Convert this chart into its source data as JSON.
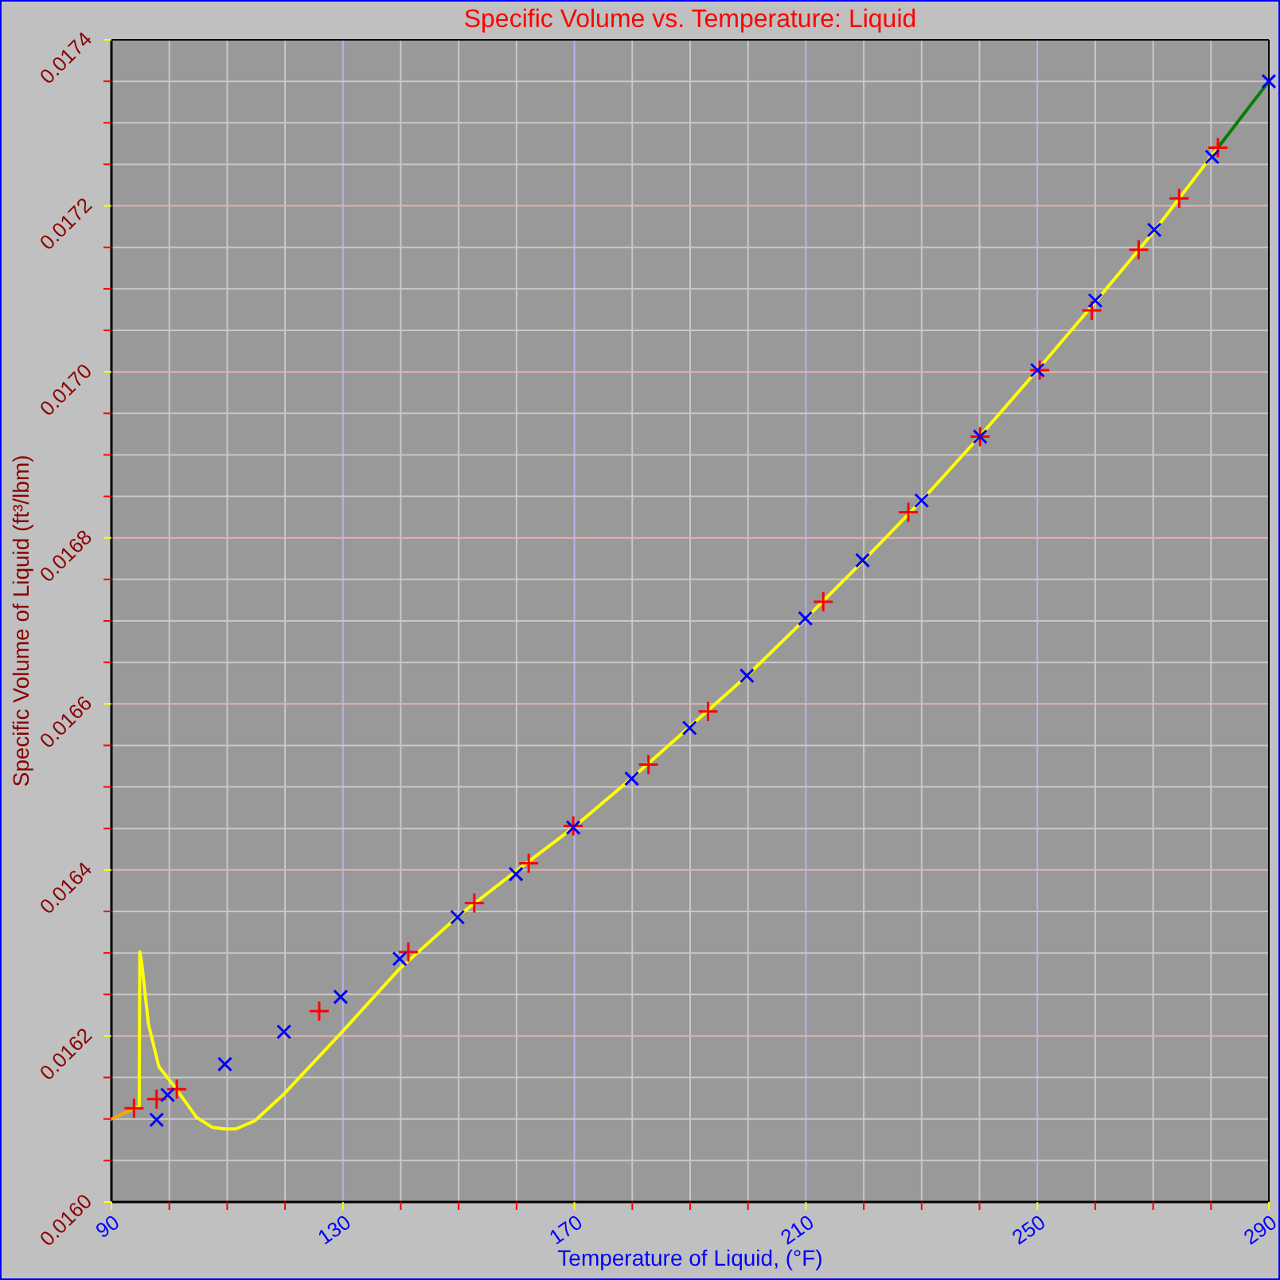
{
  "chart_data": {
    "type": "line",
    "title": "Specific Volume vs. Temperature: Liquid",
    "xlabel": "Temperature of Liquid, (°F)",
    "ylabel": "Specific Volume of Liquid (ft³/lbm)",
    "xlim": [
      90,
      290
    ],
    "ylim": [
      0.016,
      0.0174
    ],
    "xticks": [
      90,
      {
        "value": 100,
        "label": null
      },
      {
        "value": 110,
        "label": null
      },
      {
        "value": 120,
        "label": null
      },
      130,
      {
        "value": 140,
        "label": null
      },
      {
        "value": 150,
        "label": null
      },
      {
        "value": 160,
        "label": null
      },
      170,
      {
        "value": 180,
        "label": null
      },
      {
        "value": 190,
        "label": null
      },
      {
        "value": 200,
        "label": null
      },
      210,
      {
        "value": 220,
        "label": null
      },
      {
        "value": 230,
        "label": null
      },
      {
        "value": 240,
        "label": null
      },
      250,
      {
        "value": 260,
        "label": null
      },
      {
        "value": 270,
        "label": null
      },
      {
        "value": 280,
        "label": null
      },
      290
    ],
    "yticks": [
      {
        "value": 0.016,
        "label": "0.0160"
      },
      {
        "value": 0.01605,
        "label": null
      },
      {
        "value": 0.0161,
        "label": null
      },
      {
        "value": 0.01615,
        "label": null
      },
      {
        "value": 0.0162,
        "label": "0.0162"
      },
      {
        "value": 0.01625,
        "label": null
      },
      {
        "value": 0.0163,
        "label": null
      },
      {
        "value": 0.01635,
        "label": null
      },
      {
        "value": 0.0164,
        "label": "0.0164"
      },
      {
        "value": 0.01645,
        "label": null
      },
      {
        "value": 0.0165,
        "label": null
      },
      {
        "value": 0.01655,
        "label": null
      },
      {
        "value": 0.0166,
        "label": "0.0166"
      },
      {
        "value": 0.01665,
        "label": null
      },
      {
        "value": 0.0167,
        "label": null
      },
      {
        "value": 0.01675,
        "label": null
      },
      {
        "value": 0.0168,
        "label": "0.0168"
      },
      {
        "value": 0.01685,
        "label": null
      },
      {
        "value": 0.0169,
        "label": null
      },
      {
        "value": 0.01695,
        "label": null
      },
      {
        "value": 0.017,
        "label": "0.0170"
      },
      {
        "value": 0.01705,
        "label": null
      },
      {
        "value": 0.0171,
        "label": null
      },
      {
        "value": 0.01715,
        "label": null
      },
      {
        "value": 0.0172,
        "label": "0.0172"
      },
      {
        "value": 0.01725,
        "label": null
      },
      {
        "value": 0.0173,
        "label": null
      },
      {
        "value": 0.01735,
        "label": null
      },
      {
        "value": 0.0174,
        "label": "0.0174"
      }
    ],
    "grid": true,
    "series": [
      {
        "color": "#ffa500",
        "marker": "none",
        "x": [
          90,
          94.1
        ],
        "values": [
          0.0161,
          0.016113
        ]
      },
      {
        "color": "#ffff00",
        "marker": "none",
        "x": [
          94.1,
          94.8,
          94.9,
          95.2,
          96.4,
          98.2,
          101.0,
          104.7,
          107.4,
          109.7,
          111.5,
          114.8,
          119.8,
          129.6,
          139.8,
          150,
          160,
          170,
          180,
          190,
          200,
          210,
          220,
          230,
          240,
          250,
          260,
          270,
          281.2
        ],
        "values": [
          0.016113,
          0.016115,
          0.016301,
          0.01629,
          0.016214,
          0.016163,
          0.016138,
          0.016102,
          0.01609,
          0.016088,
          0.016088,
          0.016098,
          0.01613,
          0.016203,
          0.016281,
          0.016345,
          0.016399,
          0.016452,
          0.016511,
          0.016573,
          0.016635,
          0.016703,
          0.016773,
          0.016845,
          0.016922,
          0.017002,
          0.017084,
          0.017168,
          0.01727
        ]
      },
      {
        "color": "#008000",
        "marker": "none",
        "x": [
          281.2,
          290
        ],
        "values": [
          0.01727,
          0.01735
        ]
      },
      {
        "type": "scatter",
        "color": "#ff0000",
        "marker": "cross",
        "x": [
          93.9,
          97.8,
          101.3,
          125.9,
          141.3,
          152.7,
          162.1,
          169.8,
          182.8,
          193.1,
          213.0,
          227.7,
          240.1,
          250.4,
          259.4,
          267.5,
          274.5,
          281.2
        ],
        "values": [
          0.016113,
          0.016124,
          0.016136,
          0.01623,
          0.016301,
          0.01636,
          0.016408,
          0.016453,
          0.016527,
          0.016591,
          0.016723,
          0.016831,
          0.016922,
          0.017002,
          0.017074,
          0.017147,
          0.017209,
          0.01727
        ]
      },
      {
        "type": "scatter",
        "color": "#0000ff",
        "marker": "x",
        "x": [
          97.8,
          99.7,
          109.6,
          119.8,
          129.6,
          139.8,
          149.8,
          159.9,
          169.8,
          179.9,
          189.9,
          199.8,
          209.9,
          219.8,
          230.0,
          240.1,
          250.0,
          260.0,
          270.2,
          280.2,
          290
        ],
        "values": [
          0.016099,
          0.016129,
          0.016166,
          0.016205,
          0.016247,
          0.016293,
          0.016343,
          0.016395,
          0.016451,
          0.01651,
          0.016571,
          0.016634,
          0.016703,
          0.016773,
          0.016845,
          0.016922,
          0.017002,
          0.017086,
          0.017171,
          0.017259,
          0.01735
        ]
      }
    ]
  }
}
